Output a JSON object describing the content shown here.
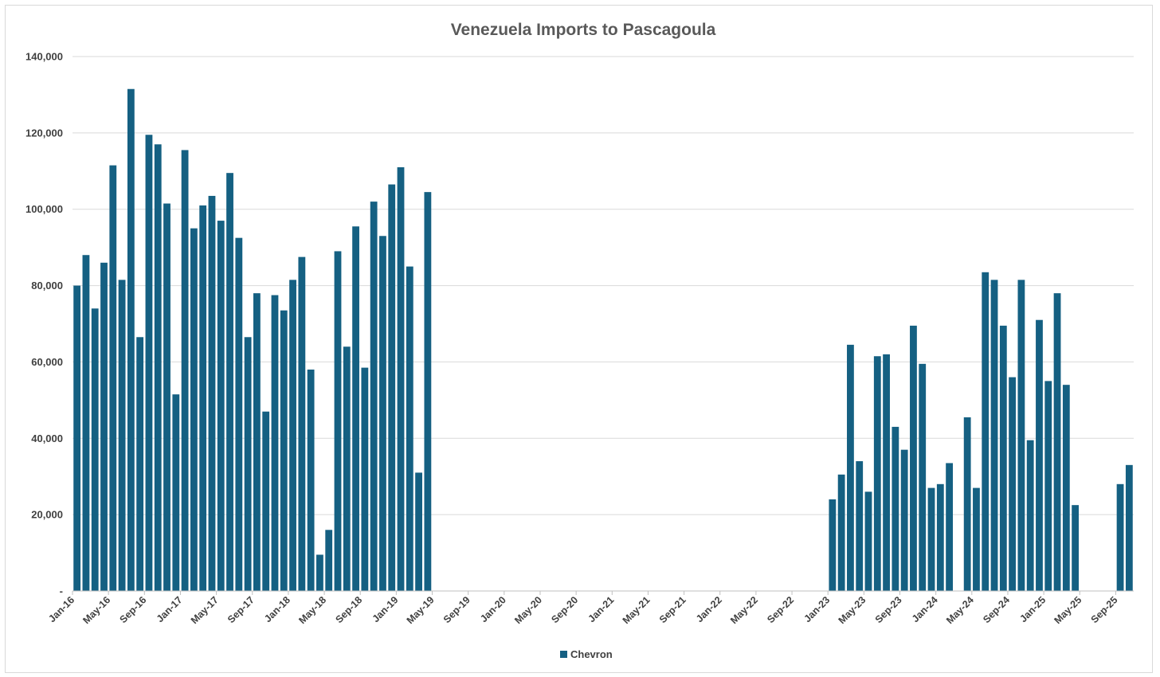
{
  "chart_data": {
    "type": "bar",
    "title": "Venezuela Imports to Pascagoula",
    "xlabel": "",
    "ylabel": "",
    "ylim": [
      0,
      140000
    ],
    "y_ticks": [
      0,
      20000,
      40000,
      60000,
      80000,
      100000,
      120000,
      140000
    ],
    "y_tick_labels": [
      "-",
      "20,000",
      "40,000",
      "60,000",
      "80,000",
      "100,000",
      "120,000",
      "140,000"
    ],
    "grid": true,
    "legend_position": "bottom",
    "x_start": "Jan-16",
    "x_tick_labels": [
      "Jan-16",
      "May-16",
      "Sep-16",
      "Jan-17",
      "May-17",
      "Sep-17",
      "Jan-18",
      "May-18",
      "Sep-18",
      "Jan-19",
      "May-19",
      "Sep-19",
      "Jan-20",
      "May-20",
      "Sep-20",
      "Jan-21",
      "May-21",
      "Sep-21",
      "Jan-22",
      "May-22",
      "Sep-22",
      "Jan-23",
      "May-23",
      "Sep-23",
      "Jan-24",
      "May-24",
      "Sep-24",
      "Jan-25",
      "May-25",
      "Sep-25"
    ],
    "series": [
      {
        "name": "Chevron",
        "color": "#156082",
        "values": [
          80000,
          88000,
          74000,
          86000,
          111500,
          81500,
          131500,
          66500,
          119500,
          117000,
          101500,
          51500,
          115500,
          95000,
          101000,
          103500,
          97000,
          109500,
          92500,
          66500,
          78000,
          47000,
          77500,
          73500,
          81500,
          87500,
          58000,
          9500,
          16000,
          89000,
          64000,
          95500,
          58500,
          102000,
          93000,
          106500,
          111000,
          85000,
          31000,
          104500,
          0,
          0,
          0,
          0,
          0,
          0,
          0,
          0,
          0,
          0,
          0,
          0,
          0,
          0,
          0,
          0,
          0,
          0,
          0,
          0,
          0,
          0,
          0,
          0,
          0,
          0,
          0,
          0,
          0,
          0,
          0,
          0,
          0,
          0,
          0,
          0,
          0,
          0,
          0,
          0,
          0,
          0,
          0,
          0,
          24000,
          30500,
          64500,
          34000,
          26000,
          61500,
          62000,
          43000,
          37000,
          69500,
          59500,
          27000,
          28000,
          33500,
          0,
          45500,
          27000,
          83500,
          81500,
          69500,
          56000,
          81500,
          39500,
          71000,
          55000,
          78000,
          54000,
          22500,
          0,
          0,
          0,
          0,
          28000,
          33000
        ]
      }
    ]
  }
}
